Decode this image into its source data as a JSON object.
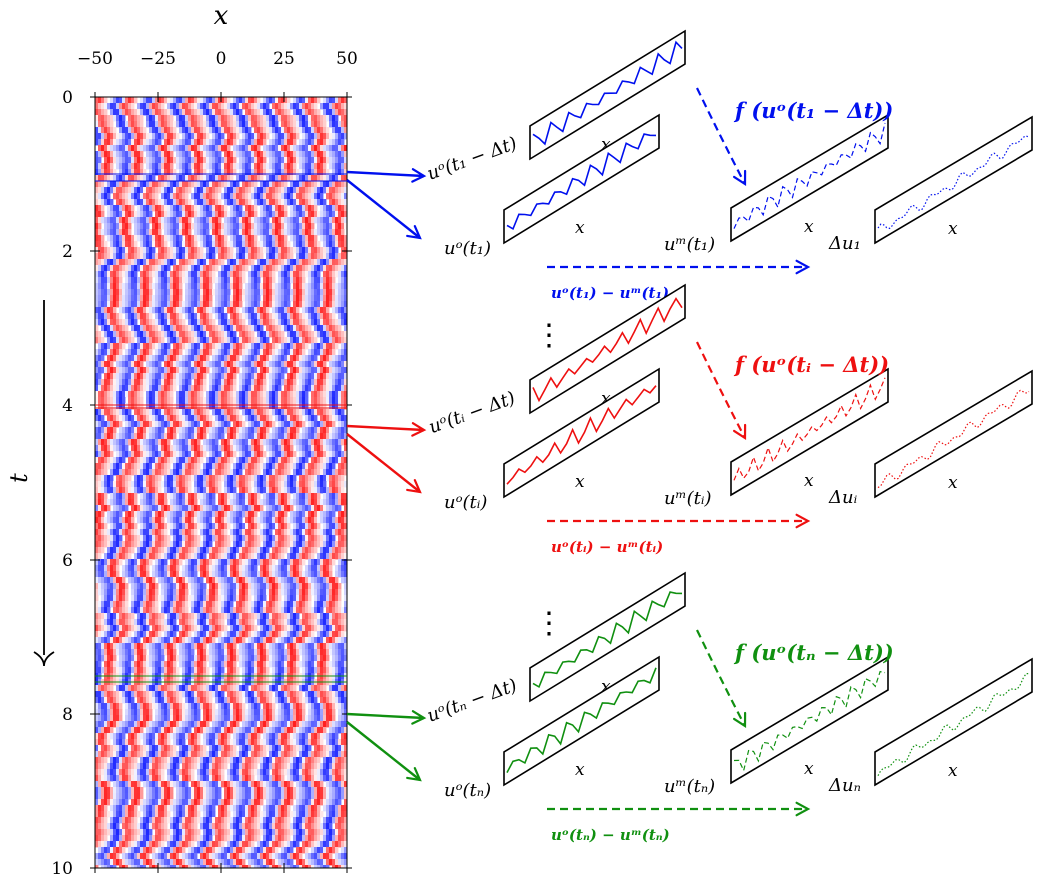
{
  "colors": {
    "blue": "#0010ee",
    "red": "#ee1010",
    "green": "#109010",
    "black": "#000000"
  },
  "heatmap": {
    "x_axis_label": "x",
    "t_axis_label": "t",
    "x_ticks": [
      "−50",
      "−25",
      "0",
      "25",
      "50"
    ],
    "t_ticks": [
      "0",
      "2",
      "4",
      "6",
      "8",
      "10"
    ],
    "x_range": [
      -50,
      50
    ],
    "t_range": [
      0,
      10
    ],
    "colormap": "blue-white-red"
  },
  "dots": "⋮",
  "rows": [
    {
      "id": "1",
      "color_key": "blue",
      "t_value": 1.05,
      "prev_label": "uᵒ(t₁ − Δt)",
      "obs_label": "uᵒ(t₁)",
      "model_label": "uᵐ(t₁)",
      "delta_label": "Δu₁",
      "f_label": "f (uᵒ(t₁ − Δt))",
      "diff_label": "uᵒ(t₁) − uᵐ(t₁)",
      "x_label": "x"
    },
    {
      "id": "i",
      "color_key": "red",
      "t_value": 4.05,
      "prev_label": "uᵒ(tᵢ − Δt)",
      "obs_label": "uᵒ(tᵢ)",
      "model_label": "uᵐ(tᵢ)",
      "delta_label": "Δuᵢ",
      "f_label": "f (uᵒ(tᵢ − Δt))",
      "diff_label": "uᵒ(tᵢ) − uᵐ(tᵢ)",
      "x_label": "x"
    },
    {
      "id": "n",
      "color_key": "green",
      "t_value": 7.55,
      "prev_label": "uᵒ(tₙ − Δt)",
      "obs_label": "uᵒ(tₙ)",
      "model_label": "uᵐ(tₙ)",
      "delta_label": "Δuₙ",
      "f_label": "f (uᵒ(tₙ − Δt))",
      "diff_label": "uᵒ(tₙ) − uᵐ(tₙ)",
      "x_label": "x"
    }
  ]
}
